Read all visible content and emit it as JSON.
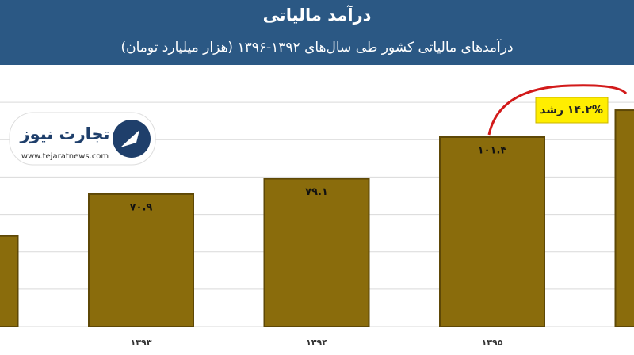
{
  "chart_data": {
    "type": "bar",
    "title": "درآمد مالیاتی",
    "subtitle": "درآمدهای مالیاتی کشور طی سال‌های ۱۳۹۲-۱۳۹۶ (هزار میلیارد تومان)",
    "categories": [
      null,
      "۱۳۹۳",
      "۱۳۹۴",
      "۱۳۹۵",
      null
    ],
    "values": [
      48.5,
      70.9,
      79.1,
      101.4,
      115.8
    ],
    "value_labels": [
      null,
      "۷۰.۹",
      "۷۹.۱",
      "۱۰۱.۴",
      null
    ],
    "color": "#8a6c0c",
    "ylim": [
      0,
      140
    ],
    "yticks": [
      0,
      20,
      40,
      60,
      80,
      100,
      120
    ],
    "grid": true,
    "annotation": "۱۴.۲% رشد",
    "logo": {
      "name": "تجارت نیوز",
      "url": "www.tejaratnews.com"
    }
  }
}
